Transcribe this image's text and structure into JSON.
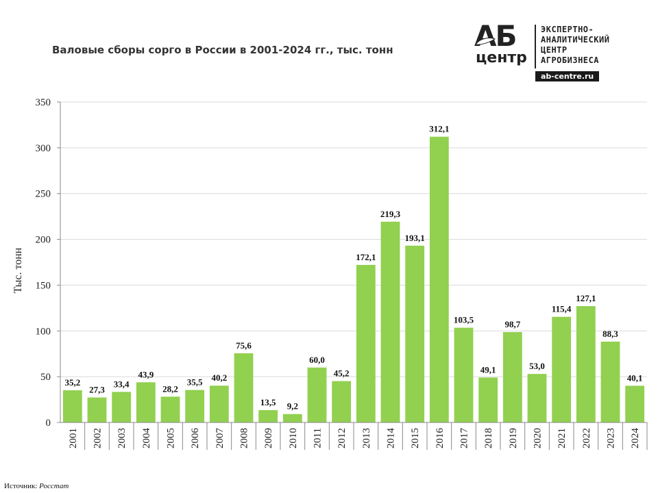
{
  "title": "Валовые сборы сорго в России в 2001-2024 гг., тыс. тонн",
  "logo": {
    "brand_top": "АБ",
    "brand_bottom": "центр",
    "lines": [
      "ЭКСПЕРТНО-",
      "АНАЛИТИЧЕСКИЙ",
      "ЦЕНТР",
      "АГРОБИЗНЕСА"
    ],
    "site": "ab-centre.ru"
  },
  "source": {
    "label": "Источник:",
    "name": "Росстат"
  },
  "colors": {
    "bar": "#92d050",
    "grid": "#d9d9d9",
    "axis": "#888888"
  },
  "chart_data": {
    "type": "bar",
    "title": "Валовые сборы сорго в России в 2001-2024 гг., тыс. тонн",
    "xlabel": "",
    "ylabel": "Тыс. тонн",
    "ylim": [
      0,
      350
    ],
    "yticks": [
      "0",
      "50",
      "100",
      "150",
      "200",
      "250",
      "300",
      "350"
    ],
    "grid": true,
    "categories": [
      "2001",
      "2002",
      "2003",
      "2004",
      "2005",
      "2006",
      "2007",
      "2008",
      "2009",
      "2010",
      "2011",
      "2012",
      "2013",
      "2014",
      "2015",
      "2016",
      "2017",
      "2018",
      "2019",
      "2020",
      "2021",
      "2022",
      "2023",
      "2024"
    ],
    "values": [
      35.2,
      27.3,
      33.4,
      43.9,
      28.2,
      35.5,
      40.2,
      75.6,
      13.5,
      9.2,
      60.0,
      45.2,
      172.1,
      219.3,
      193.1,
      312.1,
      103.5,
      49.1,
      98.7,
      53.0,
      115.4,
      127.1,
      88.3,
      40.1
    ],
    "labels": [
      "35,2",
      "27,3",
      "33,4",
      "43,9",
      "28,2",
      "35,5",
      "40,2",
      "75,6",
      "13,5",
      "9,2",
      "60,0",
      "45,2",
      "172,1",
      "219,3",
      "193,1",
      "312,1",
      "103,5",
      "49,1",
      "98,7",
      "53,0",
      "115,4",
      "127,1",
      "88,3",
      "40,1"
    ]
  }
}
